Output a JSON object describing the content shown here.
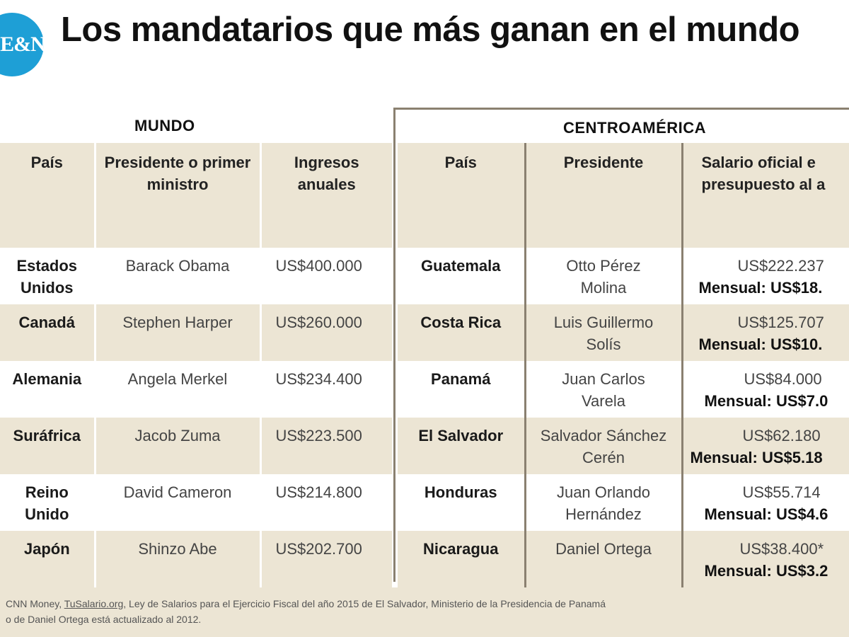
{
  "logo": "E&N",
  "title": "Los mandatarios que más ganan en el mundo",
  "mundo": {
    "label": "MUNDO",
    "headers": [
      "País",
      "Presidente o primer ministro",
      "Ingresos anuales"
    ],
    "rows": [
      {
        "country": "Estados Unidos",
        "leader": "Barack Obama",
        "income": "US$400.000"
      },
      {
        "country": "Canadá",
        "leader": "Stephen Harper",
        "income": "US$260.000"
      },
      {
        "country": "Alemania",
        "leader": "Angela Merkel",
        "income": "US$234.400"
      },
      {
        "country": "Suráfrica",
        "leader": "Jacob Zuma",
        "income": "US$223.500"
      },
      {
        "country": "Reino Unido",
        "leader": "David Cameron",
        "income": "US$214.800"
      },
      {
        "country": "Japón",
        "leader": "Shinzo Abe",
        "income": "US$202.700"
      }
    ]
  },
  "centroamerica": {
    "label": "CENTROAMÉRICA",
    "headers": [
      "País",
      "Presidente",
      "Salario oficial e presupuesto al a"
    ],
    "rows": [
      {
        "country": "Guatemala",
        "president": "Otto Pérez Molina",
        "annual": "US$222.237",
        "monthly": "Mensual: US$18."
      },
      {
        "country": "Costa Rica",
        "president": "Luis Guillermo Solís",
        "annual": "US$125.707",
        "monthly": "Mensual: US$10."
      },
      {
        "country": "Panamá",
        "president": "Juan Carlos Varela",
        "annual": "US$84.000",
        "monthly": "Mensual: US$7.0"
      },
      {
        "country": "El Salvador",
        "president": "Salvador Sánchez Cerén",
        "annual": "US$62.180",
        "monthly": "Mensual: US$5.18"
      },
      {
        "country": "Honduras",
        "president": "Juan Orlando Hernández",
        "annual": "US$55.714",
        "monthly": "Mensual: US$4.6"
      },
      {
        "country": "Nicaragua",
        "president": "Daniel Ortega",
        "annual": "US$38.400*",
        "monthly": "Mensual: US$3.2"
      }
    ]
  },
  "footer": {
    "line1_a": "CNN Money, ",
    "line1_link": "TuSalario.org",
    "line1_b": ", Ley de Salarios para el Ejercicio Fiscal del año 2015 de El Salvador, Ministerio de la Presidencia de Panamá",
    "line2": "o de Daniel Ortega está actualizado al 2012."
  }
}
